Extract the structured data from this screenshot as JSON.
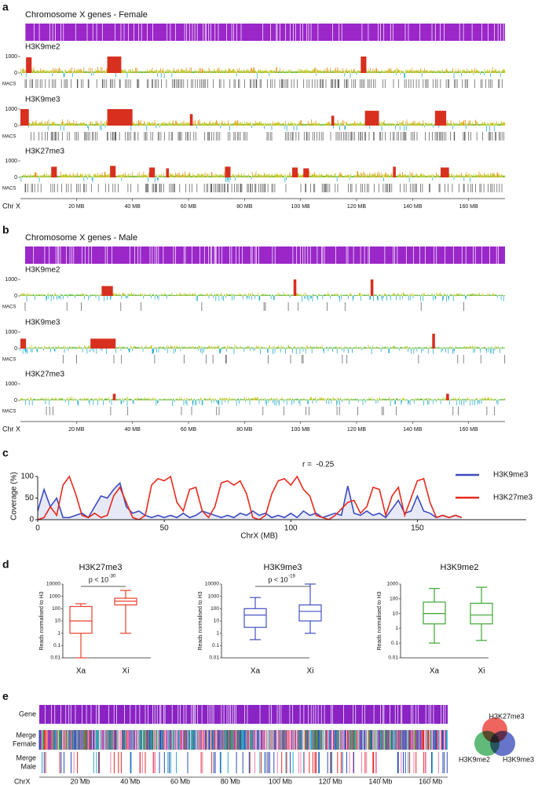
{
  "chart_data": [
    {
      "type": "genome-track",
      "panel": "a",
      "title": "Chromosome X genes - Female",
      "xlim": [
        0,
        173
      ],
      "xticks": [
        {
          "value": 20,
          "label": "20 MB"
        },
        {
          "value": 40,
          "label": "40 MB"
        },
        {
          "value": 60,
          "label": "60 MB"
        },
        {
          "value": 80,
          "label": "80 MB"
        },
        {
          "value": 100,
          "label": "100 MB"
        },
        {
          "value": 120,
          "label": "120 MB"
        },
        {
          "value": 140,
          "label": "140 MB"
        },
        {
          "value": 160,
          "label": "160 MB"
        }
      ],
      "axis_label": "Chr X",
      "macs_label": "MACS",
      "tracks": [
        {
          "name": "H3K9me2",
          "ylim": [
            -400,
            1000
          ],
          "yticks": [
            0,
            1000
          ],
          "peaks": [
            {
              "from": 2,
              "to": 4,
              "height": 950
            },
            {
              "from": 31,
              "to": 36,
              "height": 1000
            },
            {
              "from": 121.5,
              "to": 123.5,
              "height": 1000
            }
          ]
        },
        {
          "name": "H3K9me3",
          "ylim": [
            -400,
            1000
          ],
          "yticks": [
            0,
            1000
          ],
          "peaks": [
            {
              "from": 0,
              "to": 3,
              "height": 1000
            },
            {
              "from": 31,
              "to": 40,
              "height": 1000
            },
            {
              "from": 60.5,
              "to": 61.5,
              "height": 700
            },
            {
              "from": 111,
              "to": 112,
              "height": 600
            },
            {
              "from": 123,
              "to": 128,
              "height": 900
            },
            {
              "from": 148,
              "to": 152,
              "height": 900
            }
          ]
        },
        {
          "name": "H3K27me3",
          "ylim": [
            -400,
            1000
          ],
          "yticks": [
            0,
            1000
          ],
          "peaks": [
            {
              "from": 11,
              "to": 13,
              "height": 650
            },
            {
              "from": 32,
              "to": 34,
              "height": 700
            },
            {
              "from": 46,
              "to": 48,
              "height": 600
            },
            {
              "from": 52,
              "to": 53,
              "height": 550
            },
            {
              "from": 73,
              "to": 75,
              "height": 650
            },
            {
              "from": 97,
              "to": 99,
              "height": 600
            },
            {
              "from": 101,
              "to": 103,
              "height": 550
            },
            {
              "from": 133,
              "to": 134,
              "height": 650
            },
            {
              "from": 150,
              "to": 153,
              "height": 600
            }
          ]
        }
      ]
    },
    {
      "type": "genome-track",
      "panel": "b",
      "title": "Chromosome X genes - Male",
      "xlim": [
        0,
        173
      ],
      "xticks": [
        {
          "value": 20,
          "label": "20 MB"
        },
        {
          "value": 40,
          "label": "40 MB"
        },
        {
          "value": 60,
          "label": "60 MB"
        },
        {
          "value": 80,
          "label": "80 MB"
        },
        {
          "value": 100,
          "label": "100 MB"
        },
        {
          "value": 120,
          "label": "120 MB"
        },
        {
          "value": 140,
          "label": "140 MB"
        },
        {
          "value": 160,
          "label": "160 MB"
        }
      ],
      "axis_label": "Chr X",
      "macs_label": "MACS",
      "tracks": [
        {
          "name": "H3K9me2",
          "ylim": [
            -400,
            1000
          ],
          "yticks": [
            0,
            1000
          ],
          "peaks": [
            {
              "from": 29,
              "to": 33,
              "height": 600
            },
            {
              "from": 97.5,
              "to": 98.5,
              "height": 1000
            },
            {
              "from": 125,
              "to": 126,
              "height": 1000
            }
          ]
        },
        {
          "name": "H3K9me3",
          "ylim": [
            -400,
            1000
          ],
          "yticks": [
            0,
            1000
          ],
          "peaks": [
            {
              "from": 0,
              "to": 2,
              "height": 600
            },
            {
              "from": 25,
              "to": 34,
              "height": 600
            },
            {
              "from": 147,
              "to": 148,
              "height": 900
            }
          ]
        },
        {
          "name": "H3K27me3",
          "ylim": [
            -400,
            1000
          ],
          "yticks": [
            0,
            1000
          ],
          "peaks": [
            {
              "from": 33,
              "to": 34,
              "height": 400
            },
            {
              "from": 152,
              "to": 153,
              "height": 400
            }
          ]
        }
      ]
    },
    {
      "type": "line",
      "panel": "c",
      "xlabel": "ChrX (MB)",
      "ylabel": "Coverage (%)",
      "annotation": "r =  -0.25",
      "xlim": [
        0,
        193
      ],
      "ylim": [
        0,
        100
      ],
      "xticks": [
        0,
        50,
        100,
        150
      ],
      "yticks": [
        0,
        50,
        100
      ],
      "x": [
        0,
        2.5,
        5,
        7.5,
        10,
        12.5,
        15,
        17.5,
        20,
        22.5,
        25,
        27.5,
        30,
        32.5,
        35,
        37.5,
        40,
        42.5,
        45,
        47.5,
        50,
        52.5,
        55,
        57.5,
        60,
        62.5,
        65,
        67.5,
        70,
        72.5,
        75,
        77.5,
        80,
        82.5,
        85,
        87.5,
        90,
        92.5,
        95,
        97.5,
        100,
        102.5,
        105,
        107.5,
        110,
        112.5,
        115,
        117.5,
        120,
        122.5,
        125,
        127.5,
        130,
        132.5,
        135,
        137.5,
        140,
        142.5,
        145,
        147.5,
        150,
        152.5,
        155,
        157.5,
        160,
        162.5,
        165,
        167.5
      ],
      "series": [
        {
          "name": "H3K9me3",
          "color": "#3b4cc0",
          "values": [
            20,
            70,
            30,
            50,
            5,
            5,
            10,
            15,
            5,
            30,
            55,
            50,
            70,
            85,
            30,
            15,
            20,
            10,
            5,
            10,
            5,
            10,
            5,
            15,
            5,
            10,
            20,
            15,
            10,
            5,
            10,
            5,
            15,
            10,
            20,
            10,
            15,
            5,
            10,
            5,
            15,
            5,
            20,
            10,
            15,
            5,
            10,
            15,
            10,
            78,
            15,
            10,
            20,
            10,
            15,
            5,
            25,
            45,
            15,
            20,
            55,
            20,
            15,
            5,
            10,
            5,
            10,
            5
          ]
        },
        {
          "name": "H3K27me3",
          "color": "#e8291c",
          "values": [
            0,
            5,
            30,
            10,
            80,
            100,
            60,
            10,
            5,
            15,
            5,
            10,
            55,
            75,
            40,
            5,
            0,
            10,
            80,
            95,
            90,
            100,
            40,
            20,
            70,
            75,
            20,
            5,
            30,
            85,
            90,
            80,
            90,
            60,
            5,
            0,
            10,
            60,
            90,
            95,
            80,
            100,
            70,
            55,
            10,
            5,
            0,
            10,
            25,
            40,
            45,
            15,
            30,
            75,
            70,
            10,
            55,
            75,
            10,
            50,
            90,
            95,
            40,
            5,
            10,
            5,
            10,
            5
          ]
        }
      ]
    },
    {
      "type": "box",
      "panel": "d",
      "title": "H3K27me3",
      "ylabel": "Reads normalised to H3",
      "categories": [
        "Xa",
        "Xi"
      ],
      "color": "#e8412c",
      "log_scale": true,
      "ylim": [
        0.01,
        10000
      ],
      "yticks": [
        10000,
        1000,
        100,
        10,
        1,
        0.1,
        0.01
      ],
      "boxes": [
        {
          "low": 0.01,
          "q1": 1,
          "median": 10,
          "q3": 150,
          "high": 250
        },
        {
          "low": 1,
          "q1": 200,
          "median": 400,
          "q3": 700,
          "high": 3000
        }
      ],
      "annotation": {
        "text": "p < 10",
        "exponent": "-30"
      }
    },
    {
      "type": "box",
      "title": "H3K9me3",
      "ylabel": "Reads normalised to H3",
      "categories": [
        "Xa",
        "Xi"
      ],
      "color": "#4552c2",
      "log_scale": true,
      "ylim": [
        0.01,
        10000
      ],
      "yticks": [
        10000,
        1000,
        100,
        10,
        1,
        0.1,
        0.01
      ],
      "boxes": [
        {
          "low": 0.3,
          "q1": 3,
          "median": 30,
          "q3": 100,
          "high": 800
        },
        {
          "low": 1,
          "q1": 10,
          "median": 60,
          "q3": 200,
          "high": 10000
        }
      ],
      "annotation": {
        "text": "p < 10",
        "exponent": "-19"
      }
    },
    {
      "type": "box",
      "title": "H3K9me2",
      "ylabel": "Reads normalised to H3",
      "categories": [
        "Xa",
        "Xi"
      ],
      "color": "#3fa535",
      "log_scale": true,
      "ylim": [
        0.01,
        1000
      ],
      "yticks": [
        1000,
        100,
        10,
        1,
        0.1,
        0.01
      ],
      "boxes": [
        {
          "low": 0.1,
          "q1": 2,
          "median": 10,
          "q3": 60,
          "high": 500
        },
        {
          "low": 0.15,
          "q1": 2,
          "median": 8,
          "q3": 50,
          "high": 600
        }
      ]
    },
    {
      "type": "merge-track",
      "panel": "e",
      "xlim": [
        0,
        167
      ],
      "axis_label": "ChrX",
      "xticks": [
        {
          "value": 20,
          "label": "20 Mb"
        },
        {
          "value": 40,
          "label": "40 Mb"
        },
        {
          "value": 60,
          "label": "60 Mb"
        },
        {
          "value": 80,
          "label": "80 Mb"
        },
        {
          "value": 100,
          "label": "100 Mb"
        },
        {
          "value": 120,
          "label": "120 Mb"
        },
        {
          "value": 140,
          "label": "140 Mb"
        },
        {
          "value": 160,
          "label": "160 Mb"
        }
      ],
      "tracks": [
        {
          "label": [
            "Gene"
          ]
        },
        {
          "label": [
            "Merge",
            "Female"
          ]
        },
        {
          "label": [
            "Merge",
            "Male"
          ]
        }
      ],
      "venn": [
        "H3K27me3",
        "H3K9me2",
        "H3K9me3"
      ]
    }
  ]
}
